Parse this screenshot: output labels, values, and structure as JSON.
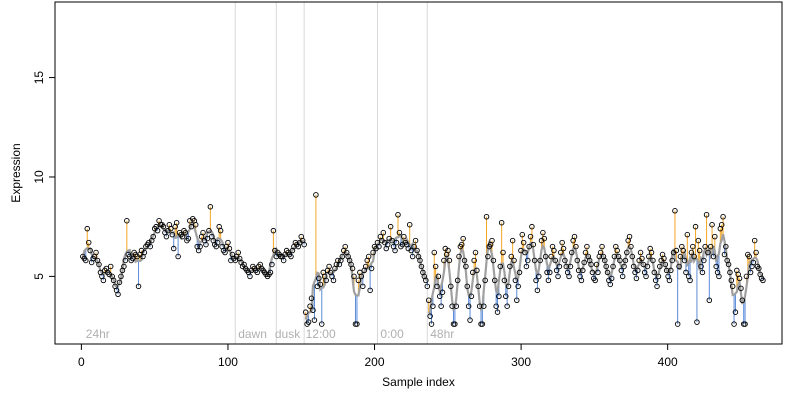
{
  "chart_data": {
    "type": "scatter",
    "title": "",
    "xlabel": "Sample index",
    "ylabel": "Expression",
    "xlim": [
      -18,
      478
    ],
    "ylim": [
      1.6,
      18.8
    ],
    "x_ticks": [
      0,
      100,
      200,
      300,
      400
    ],
    "y_ticks": [
      5,
      10,
      15
    ],
    "grid": false,
    "legend": "none",
    "colors": {
      "points_edge": "#000000",
      "fit_line": "#a0a0a0",
      "residual_above": "#f5a623",
      "residual_below": "#5b8bd8",
      "vlines": "#d9d9d9",
      "annotation_text": "#b0b0b0"
    },
    "vlines": [
      105,
      133,
      152,
      202,
      236
    ],
    "annotations": [
      {
        "label": "24hr",
        "x": 3
      },
      {
        "label": "dawn",
        "x": 107
      },
      {
        "label": "dusk",
        "x": 132
      },
      {
        "label": "12:00",
        "x": 153
      },
      {
        "label": "0:00",
        "x": 204
      },
      {
        "label": "48hr",
        "x": 238
      }
    ],
    "segments": [
      {
        "start": 1,
        "end": 152,
        "points": [
          6.0,
          5.9,
          5.8,
          7.4,
          6.7,
          6.3,
          5.7,
          5.9,
          6.0,
          6.2,
          5.8,
          5.6,
          5.2,
          5.0,
          4.8,
          5.3,
          5.4,
          5.2,
          5.1,
          5.5,
          5.0,
          4.8,
          4.5,
          4.3,
          4.1,
          4.7,
          5.0,
          5.3,
          5.5,
          5.8,
          7.8,
          6.1,
          6.0,
          5.8,
          5.9,
          6.2,
          6.1,
          6.0,
          4.5,
          6.1,
          6.3,
          6.0,
          6.2,
          6.5,
          6.6,
          6.7,
          6.5,
          6.8,
          7.0,
          7.4,
          7.5,
          7.3,
          7.8,
          7.6,
          7.6,
          7.5,
          7.2,
          7.0,
          7.3,
          7.6,
          7.4,
          7.1,
          6.4,
          7.5,
          7.7,
          6.0,
          7.2,
          7.1,
          7.0,
          7.3,
          7.2,
          6.8,
          6.9,
          7.8,
          7.5,
          7.9,
          7.8,
          7.6,
          6.5,
          6.3,
          6.5,
          7.0,
          7.2,
          6.8,
          6.6,
          6.9,
          7.3,
          8.5,
          7.0,
          6.8,
          6.6,
          6.5,
          6.7,
          7.5,
          7.3,
          6.5,
          6.3,
          6.2,
          6.5,
          6.7,
          6.4,
          5.8,
          6.1,
          5.9,
          5.8,
          6.0,
          6.2,
          5.9,
          5.7,
          5.5,
          5.6,
          5.4,
          5.3,
          5.2,
          5.0,
          5.3,
          5.5,
          5.4,
          5.3,
          5.2,
          5.5,
          5.6,
          5.4,
          5.3,
          5.2,
          5.1,
          5.0,
          5.1,
          5.2,
          5.6,
          7.3,
          6.3,
          6.0,
          6.2,
          6.1,
          6.0,
          6.0,
          5.8,
          6.1,
          6.3,
          6.2,
          6.1,
          6.0,
          6.3,
          6.5,
          6.7,
          6.6,
          6.5,
          6.7,
          7.0,
          6.8,
          6.6
        ]
      },
      {
        "start": 153,
        "end": 236,
        "points": [
          3.2,
          2.6,
          2.7,
          3.5,
          3.9,
          3.3,
          2.8,
          9.1,
          4.5,
          4.9,
          4.6,
          2.6,
          5.2,
          5.0,
          4.8,
          5.3,
          5.5,
          5.2,
          5.0,
          4.8,
          5.4,
          5.6,
          5.8,
          5.6,
          5.8,
          6.0,
          6.3,
          6.5,
          6.2,
          6.0,
          5.8,
          5.6,
          5.4,
          5.0,
          2.6,
          2.6,
          4.8,
          5.2,
          5.0,
          4.5,
          5.3,
          5.5,
          5.8,
          6.0,
          4.3,
          5.4,
          6.2,
          6.5,
          6.4,
          6.7,
          6.5,
          7.0,
          6.8,
          7.2,
          6.7,
          6.4,
          6.6,
          6.9,
          7.5,
          6.8,
          6.5,
          6.3,
          6.7,
          8.1,
          7.2,
          6.5,
          6.6,
          7.0,
          6.7,
          6.6,
          6.4,
          7.6,
          6.3,
          6.0,
          6.5,
          6.8,
          6.3,
          6.0,
          5.8,
          5.5,
          5.2,
          5.0,
          4.8,
          4.5
        ]
      },
      {
        "start": 237,
        "end": 465,
        "points": [
          3.8,
          3.0,
          2.6,
          3.5,
          6.2,
          5.5,
          4.5,
          5.0,
          4.0,
          3.5,
          4.2,
          5.8,
          6.4,
          6.1,
          6.3,
          5.8,
          4.5,
          3.5,
          2.6,
          2.6,
          3.5,
          4.8,
          6.0,
          6.5,
          6.6,
          6.9,
          5.8,
          5.5,
          4.5,
          3.5,
          2.8,
          4.0,
          5.2,
          5.8,
          6.2,
          5.3,
          4.5,
          3.5,
          2.6,
          2.6,
          3.5,
          4.8,
          8.0,
          6.0,
          6.5,
          6.6,
          6.8,
          5.8,
          4.8,
          3.5,
          3.2,
          4.0,
          5.5,
          7.7,
          6.2,
          4.8,
          4.0,
          3.5,
          4.5,
          5.5,
          6.0,
          6.8,
          5.8,
          4.8,
          3.8,
          4.5,
          5.2,
          6.3,
          7.1,
          6.7,
          6.2,
          5.5,
          5.8,
          6.5,
          7.0,
          7.5,
          6.6,
          5.8,
          4.8,
          4.3,
          5.0,
          5.8,
          6.8,
          7.2,
          6.9,
          6.0,
          5.2,
          4.8,
          5.2,
          6.0,
          6.5,
          6.3,
          5.8,
          5.3,
          5.0,
          5.5,
          6.2,
          6.7,
          6.4,
          5.8,
          5.5,
          5.2,
          5.0,
          5.5,
          6.2,
          6.8,
          7.0,
          6.5,
          5.8,
          5.3,
          5.0,
          4.8,
          5.3,
          5.7,
          6.2,
          6.5,
          6.0,
          5.8,
          5.6,
          5.2,
          4.9,
          4.8,
          5.6,
          5.2,
          6.0,
          6.2,
          6.5,
          6.0,
          5.8,
          5.5,
          5.2,
          4.8,
          4.6,
          4.9,
          5.5,
          6.0,
          6.5,
          6.3,
          6.0,
          5.8,
          5.3,
          5.0,
          5.5,
          5.8,
          6.2,
          6.8,
          7.0,
          6.5,
          6.0,
          5.5,
          5.2,
          4.9,
          5.3,
          5.8,
          6.2,
          5.9,
          5.6,
          5.2,
          5.0,
          5.5,
          6.0,
          6.4,
          6.2,
          5.8,
          5.2,
          4.8,
          4.5,
          5.0,
          5.5,
          5.8,
          6.1,
          5.9,
          5.6,
          5.3,
          5.0,
          4.8,
          5.3,
          5.8,
          6.2,
          8.3,
          6.3,
          2.6,
          5.5,
          6.0,
          6.5,
          6.3,
          5.8,
          5.2,
          7.1,
          5.0,
          4.8,
          6.2,
          6.5,
          6.0,
          7.5,
          2.7,
          6.8,
          6.3,
          5.5,
          5.2,
          5.8,
          6.5,
          8.1,
          6.2,
          3.8,
          6.5,
          7.6,
          6.0,
          7.0,
          5.5,
          5.2,
          5.0,
          7.4,
          7.6,
          8.0,
          6.1,
          6.5,
          5.8,
          5.6,
          5.2,
          4.8,
          4.5,
          2.6,
          3.2,
          5.3,
          5.1,
          4.9,
          4.4,
          3.8,
          2.6,
          2.6,
          5.0,
          6.1,
          6.0,
          5.2,
          5.5,
          5.7,
          6.8,
          6.2,
          5.5,
          5.4,
          5.1,
          4.9,
          4.8
        ]
      }
    ]
  }
}
